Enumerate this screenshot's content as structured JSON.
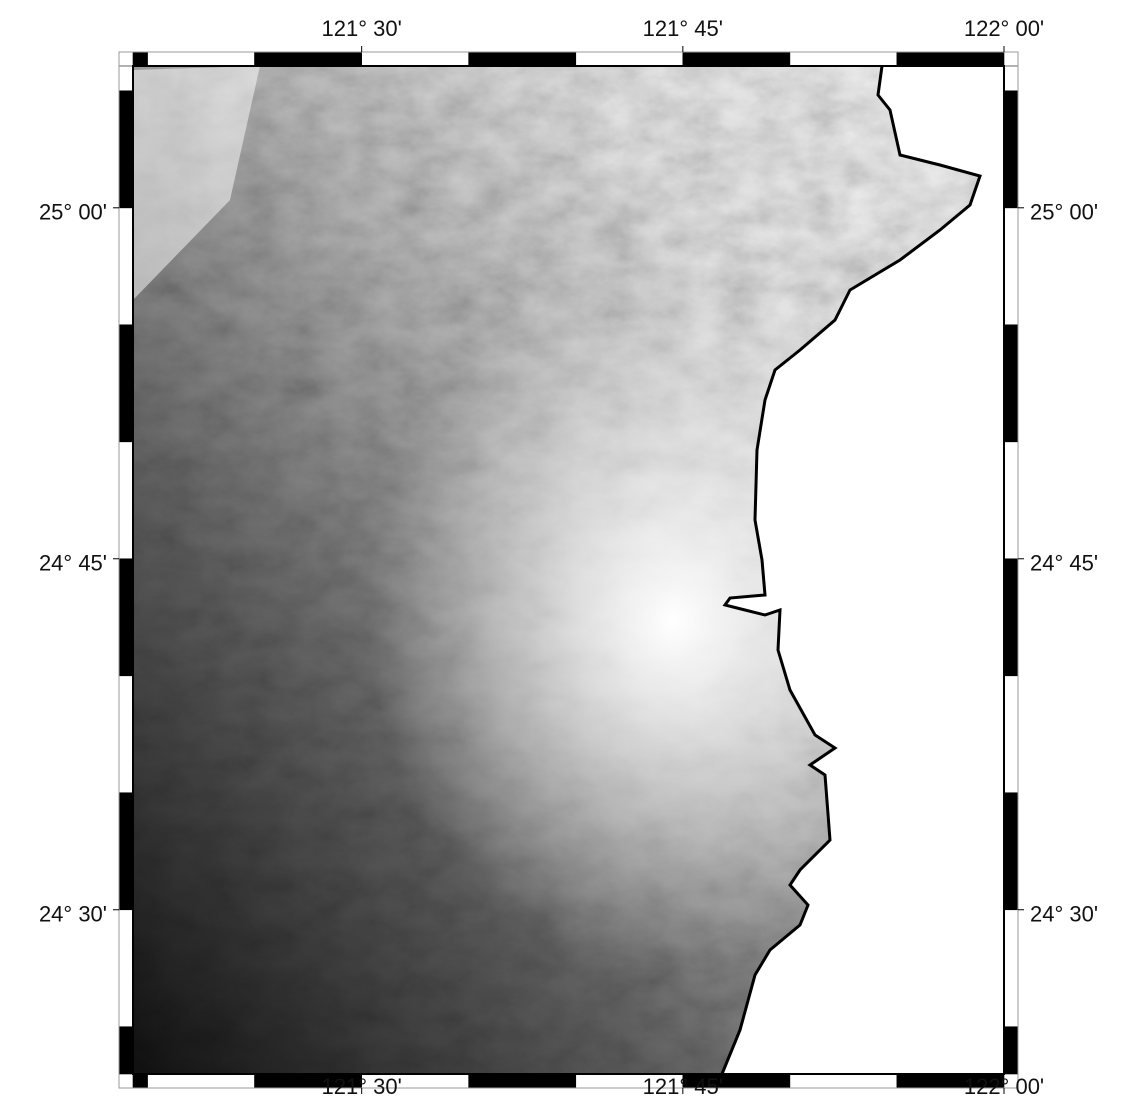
{
  "map": {
    "xlim": [
      121.322,
      122.0
    ],
    "ylim": [
      24.383,
      25.101
    ],
    "xticks": [
      {
        "value": 121.5,
        "label": "121° 30'"
      },
      {
        "value": 121.75,
        "label": "121° 45'"
      },
      {
        "value": 122.0,
        "label": "122° 00'"
      }
    ],
    "yticks": [
      {
        "value": 24.5,
        "label": "24° 30'"
      },
      {
        "value": 24.75,
        "label": "24° 45'"
      },
      {
        "value": 25.0,
        "label": "25° 00'"
      }
    ]
  }
}
